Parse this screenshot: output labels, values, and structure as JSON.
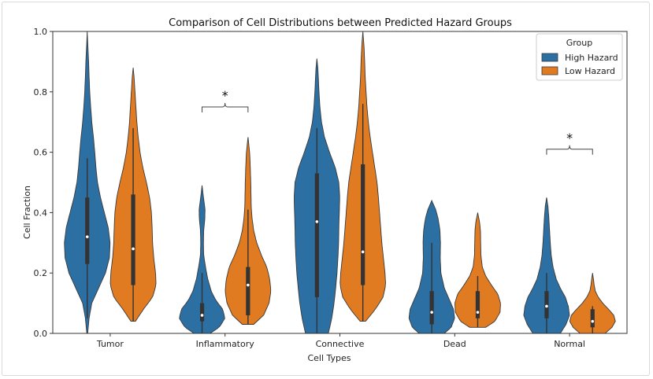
{
  "chart_data": {
    "type": "violin",
    "title": "Comparison of Cell Distributions between Predicted Hazard Groups",
    "xlabel": "Cell Types",
    "ylabel": "Cell Fraction",
    "ylim": [
      0,
      1.0
    ],
    "yticks": [
      "0.0",
      "0.2",
      "0.4",
      "0.6",
      "0.8",
      "1.0"
    ],
    "categories": [
      "Tumor",
      "Inflammatory",
      "Connective",
      "Dead",
      "Normal"
    ],
    "legend": {
      "title": "Group",
      "placement": "top-right"
    },
    "series": [
      {
        "name": "High Hazard",
        "color": "#2c6fa3",
        "violins": [
          {
            "min": 0.0,
            "max": 1.0,
            "q1": 0.23,
            "median": 0.32,
            "q3": 0.45,
            "wlo": 0.05,
            "whi": 0.58,
            "profile": [
              [
                0.0,
                0.02
              ],
              [
                0.05,
                0.08
              ],
              [
                0.1,
                0.2
              ],
              [
                0.15,
                0.5
              ],
              [
                0.2,
                0.8
              ],
              [
                0.25,
                0.97
              ],
              [
                0.3,
                1.0
              ],
              [
                0.35,
                0.92
              ],
              [
                0.4,
                0.75
              ],
              [
                0.45,
                0.58
              ],
              [
                0.5,
                0.45
              ],
              [
                0.55,
                0.38
              ],
              [
                0.6,
                0.33
              ],
              [
                0.65,
                0.27
              ],
              [
                0.7,
                0.2
              ],
              [
                0.75,
                0.15
              ],
              [
                0.8,
                0.11
              ],
              [
                0.85,
                0.08
              ],
              [
                0.9,
                0.06
              ],
              [
                0.95,
                0.03
              ],
              [
                1.0,
                0.0
              ]
            ]
          },
          {
            "min": 0.0,
            "max": 0.49,
            "q1": 0.04,
            "median": 0.06,
            "q3": 0.1,
            "wlo": 0.0,
            "whi": 0.2,
            "profile": [
              [
                0.0,
                0.35
              ],
              [
                0.02,
                0.75
              ],
              [
                0.05,
                1.0
              ],
              [
                0.08,
                0.9
              ],
              [
                0.11,
                0.6
              ],
              [
                0.14,
                0.4
              ],
              [
                0.18,
                0.25
              ],
              [
                0.22,
                0.15
              ],
              [
                0.26,
                0.07
              ],
              [
                0.3,
                0.06
              ],
              [
                0.34,
                0.07
              ],
              [
                0.38,
                0.12
              ],
              [
                0.41,
                0.13
              ],
              [
                0.44,
                0.08
              ],
              [
                0.47,
                0.03
              ],
              [
                0.49,
                0.0
              ]
            ]
          },
          {
            "min": 0.0,
            "max": 0.91,
            "q1": 0.12,
            "median": 0.37,
            "q3": 0.53,
            "wlo": 0.0,
            "whi": 0.68,
            "profile": [
              [
                0.0,
                0.5
              ],
              [
                0.05,
                0.65
              ],
              [
                0.1,
                0.75
              ],
              [
                0.15,
                0.82
              ],
              [
                0.2,
                0.88
              ],
              [
                0.25,
                0.92
              ],
              [
                0.3,
                0.95
              ],
              [
                0.35,
                0.96
              ],
              [
                0.4,
                0.98
              ],
              [
                0.45,
                1.0
              ],
              [
                0.5,
                0.96
              ],
              [
                0.55,
                0.8
              ],
              [
                0.6,
                0.55
              ],
              [
                0.65,
                0.33
              ],
              [
                0.7,
                0.2
              ],
              [
                0.75,
                0.13
              ],
              [
                0.8,
                0.09
              ],
              [
                0.85,
                0.06
              ],
              [
                0.88,
                0.04
              ],
              [
                0.91,
                0.0
              ]
            ]
          },
          {
            "min": 0.0,
            "max": 0.44,
            "q1": 0.03,
            "median": 0.07,
            "q3": 0.14,
            "wlo": 0.0,
            "whi": 0.3,
            "profile": [
              [
                0.0,
                0.55
              ],
              [
                0.02,
                0.85
              ],
              [
                0.05,
                1.0
              ],
              [
                0.08,
                0.95
              ],
              [
                0.11,
                0.78
              ],
              [
                0.15,
                0.55
              ],
              [
                0.2,
                0.4
              ],
              [
                0.25,
                0.37
              ],
              [
                0.3,
                0.38
              ],
              [
                0.34,
                0.36
              ],
              [
                0.38,
                0.28
              ],
              [
                0.41,
                0.17
              ],
              [
                0.44,
                0.0
              ]
            ]
          },
          {
            "min": 0.0,
            "max": 0.45,
            "q1": 0.05,
            "median": 0.09,
            "q3": 0.14,
            "wlo": 0.0,
            "whi": 0.2,
            "profile": [
              [
                0.0,
                0.6
              ],
              [
                0.03,
                0.85
              ],
              [
                0.06,
                1.0
              ],
              [
                0.09,
                0.95
              ],
              [
                0.12,
                0.82
              ],
              [
                0.15,
                0.6
              ],
              [
                0.18,
                0.42
              ],
              [
                0.22,
                0.28
              ],
              [
                0.26,
                0.2
              ],
              [
                0.3,
                0.16
              ],
              [
                0.34,
                0.13
              ],
              [
                0.38,
                0.1
              ],
              [
                0.42,
                0.06
              ],
              [
                0.45,
                0.0
              ]
            ]
          }
        ]
      },
      {
        "name": "Low Hazard",
        "color": "#e07b22",
        "violins": [
          {
            "min": 0.04,
            "max": 0.88,
            "q1": 0.16,
            "median": 0.28,
            "q3": 0.46,
            "wlo": 0.04,
            "whi": 0.68,
            "profile": [
              [
                0.04,
                0.1
              ],
              [
                0.08,
                0.45
              ],
              [
                0.12,
                0.85
              ],
              [
                0.16,
                1.0
              ],
              [
                0.2,
                0.98
              ],
              [
                0.25,
                0.9
              ],
              [
                0.3,
                0.85
              ],
              [
                0.35,
                0.83
              ],
              [
                0.4,
                0.8
              ],
              [
                0.45,
                0.72
              ],
              [
                0.5,
                0.58
              ],
              [
                0.55,
                0.42
              ],
              [
                0.6,
                0.3
              ],
              [
                0.65,
                0.22
              ],
              [
                0.7,
                0.16
              ],
              [
                0.75,
                0.12
              ],
              [
                0.8,
                0.08
              ],
              [
                0.85,
                0.04
              ],
              [
                0.88,
                0.0
              ]
            ]
          },
          {
            "min": 0.03,
            "max": 0.65,
            "q1": 0.06,
            "median": 0.16,
            "q3": 0.22,
            "wlo": 0.03,
            "whi": 0.41,
            "profile": [
              [
                0.03,
                0.25
              ],
              [
                0.06,
                0.68
              ],
              [
                0.1,
                0.92
              ],
              [
                0.14,
                1.0
              ],
              [
                0.18,
                0.95
              ],
              [
                0.22,
                0.82
              ],
              [
                0.26,
                0.58
              ],
              [
                0.3,
                0.38
              ],
              [
                0.34,
                0.25
              ],
              [
                0.38,
                0.18
              ],
              [
                0.42,
                0.14
              ],
              [
                0.46,
                0.13
              ],
              [
                0.5,
                0.12
              ],
              [
                0.55,
                0.1
              ],
              [
                0.6,
                0.07
              ],
              [
                0.65,
                0.0
              ]
            ]
          },
          {
            "min": 0.04,
            "max": 1.0,
            "q1": 0.16,
            "median": 0.27,
            "q3": 0.56,
            "wlo": 0.04,
            "whi": 0.76,
            "profile": [
              [
                0.04,
                0.12
              ],
              [
                0.08,
                0.55
              ],
              [
                0.12,
                0.88
              ],
              [
                0.16,
                1.0
              ],
              [
                0.2,
                0.97
              ],
              [
                0.25,
                0.9
              ],
              [
                0.3,
                0.83
              ],
              [
                0.35,
                0.78
              ],
              [
                0.4,
                0.73
              ],
              [
                0.45,
                0.68
              ],
              [
                0.5,
                0.62
              ],
              [
                0.55,
                0.52
              ],
              [
                0.6,
                0.42
              ],
              [
                0.65,
                0.32
              ],
              [
                0.7,
                0.24
              ],
              [
                0.75,
                0.18
              ],
              [
                0.8,
                0.14
              ],
              [
                0.85,
                0.1
              ],
              [
                0.9,
                0.08
              ],
              [
                0.95,
                0.05
              ],
              [
                1.0,
                0.0
              ]
            ]
          },
          {
            "min": 0.02,
            "max": 0.4,
            "q1": 0.05,
            "median": 0.07,
            "q3": 0.14,
            "wlo": 0.02,
            "whi": 0.19,
            "profile": [
              [
                0.02,
                0.35
              ],
              [
                0.04,
                0.75
              ],
              [
                0.07,
                0.98
              ],
              [
                0.1,
                1.0
              ],
              [
                0.13,
                0.88
              ],
              [
                0.16,
                0.6
              ],
              [
                0.19,
                0.35
              ],
              [
                0.22,
                0.2
              ],
              [
                0.26,
                0.14
              ],
              [
                0.3,
                0.13
              ],
              [
                0.34,
                0.12
              ],
              [
                0.37,
                0.08
              ],
              [
                0.4,
                0.0
              ]
            ]
          },
          {
            "min": 0.0,
            "max": 0.2,
            "q1": 0.02,
            "median": 0.04,
            "q3": 0.08,
            "wlo": 0.0,
            "whi": 0.09,
            "profile": [
              [
                0.0,
                0.55
              ],
              [
                0.02,
                0.85
              ],
              [
                0.04,
                1.0
              ],
              [
                0.06,
                0.93
              ],
              [
                0.08,
                0.7
              ],
              [
                0.1,
                0.45
              ],
              [
                0.12,
                0.25
              ],
              [
                0.14,
                0.12
              ],
              [
                0.16,
                0.07
              ],
              [
                0.18,
                0.04
              ],
              [
                0.2,
                0.0
              ]
            ]
          }
        ]
      }
    ],
    "annotations": [
      {
        "category": "Inflammatory",
        "text": "*",
        "y": 0.75
      },
      {
        "category": "Normal",
        "text": "*",
        "y": 0.61
      }
    ]
  }
}
